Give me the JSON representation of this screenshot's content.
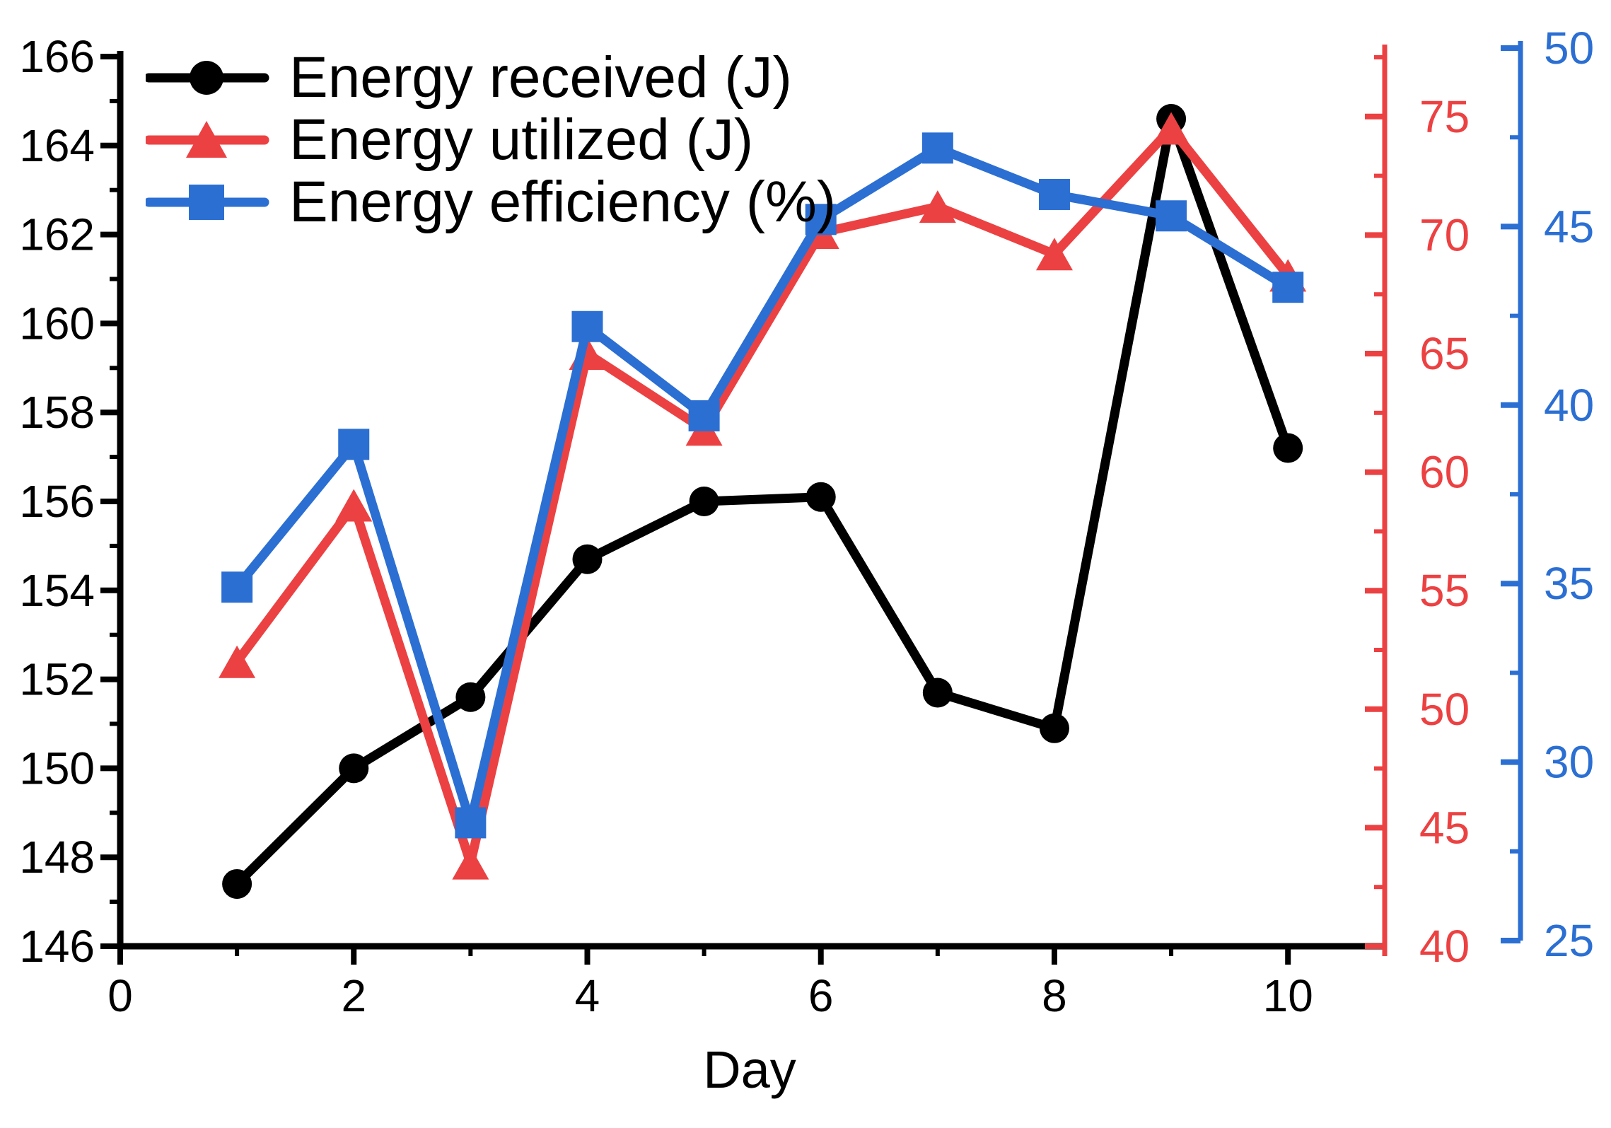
{
  "chart_data": {
    "type": "line",
    "title": "",
    "xlabel": "Day",
    "ylabel_left": "",
    "grid": false,
    "legend_position": "top-left",
    "x": [
      1,
      2,
      3,
      4,
      5,
      6,
      7,
      8,
      9,
      10
    ],
    "series": [
      {
        "id": "energy-received",
        "name": "Energy received (J)",
        "axis": "left",
        "color": "#000000",
        "marker": "circle",
        "values": [
          147.4,
          150.0,
          151.6,
          154.7,
          156.0,
          156.1,
          151.7,
          150.9,
          164.6,
          157.2
        ]
      },
      {
        "id": "energy-utilized",
        "name": "Energy utilized (J)",
        "axis": "right_red",
        "color": "#ec4142",
        "marker": "triangle",
        "values": [
          52.0,
          58.6,
          43.5,
          65.0,
          61.8,
          70.1,
          71.2,
          69.2,
          74.5,
          68.3
        ]
      },
      {
        "id": "energy-efficiency",
        "name": "Energy efficiency (%)",
        "axis": "right_blue",
        "color": "#2b6fd3",
        "marker": "square",
        "values": [
          34.9,
          38.9,
          28.3,
          42.2,
          39.7,
          45.2,
          47.2,
          45.9,
          45.3,
          43.3
        ]
      }
    ],
    "axes": {
      "x": {
        "label": "Day",
        "range": [
          0,
          10.78
        ],
        "major_ticks": [
          0,
          2,
          4,
          6,
          8,
          10
        ],
        "minor_ticks": [
          1,
          3,
          5,
          7,
          9
        ],
        "color": "#000000"
      },
      "left": {
        "range": [
          146,
          166
        ],
        "major_ticks": [
          146,
          148,
          150,
          152,
          154,
          156,
          158,
          160,
          162,
          164,
          166
        ],
        "minor_ticks": [
          147,
          149,
          151,
          153,
          155,
          157,
          159,
          161,
          163,
          165
        ],
        "color": "#000000"
      },
      "right_red": {
        "range": [
          40,
          77.5
        ],
        "major_ticks": [
          40,
          45,
          50,
          55,
          60,
          65,
          70,
          75
        ],
        "minor_ticks": [
          42.5,
          47.5,
          52.5,
          57.5,
          62.5,
          67.5,
          72.5,
          77.5
        ],
        "color": "#ec4142"
      },
      "right_blue": {
        "range": [
          25,
          50
        ],
        "major_ticks": [
          25,
          30,
          35,
          40,
          45,
          50
        ],
        "minor_ticks": [
          27.5,
          32.5,
          37.5,
          42.5,
          47.5
        ],
        "color": "#2b6fd3"
      }
    }
  }
}
